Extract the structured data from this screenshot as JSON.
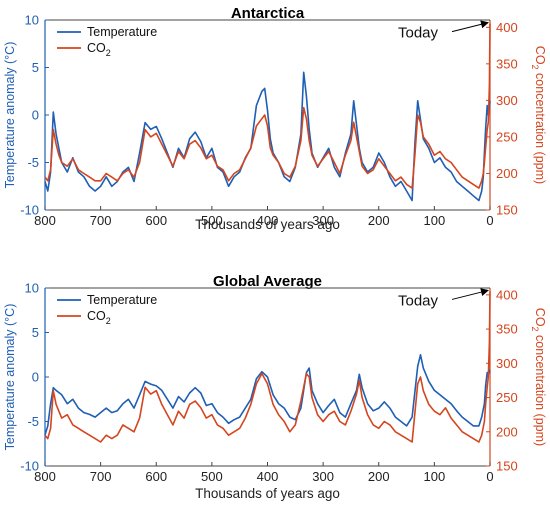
{
  "colors": {
    "temperature": "#1f5fb4",
    "co2": "#d4461f",
    "axis_text": "#000000"
  },
  "chart_data": [
    {
      "type": "line",
      "title": "Antarctica",
      "xlabel": "Thousands of years ago",
      "ylabel_left": "Temperature anomaly (°C)",
      "ylabel_right_main": "CO",
      "ylabel_right_sub": "2",
      "ylabel_right_tail": " concentration (ppm)",
      "xlim": [
        800,
        0
      ],
      "ylim_left": [
        -10,
        10
      ],
      "ylim_right": [
        150,
        410
      ],
      "xticks": [
        "800",
        "700",
        "600",
        "500",
        "400",
        "300",
        "200",
        "100",
        "0"
      ],
      "yticks_left": [
        "-10",
        "-5",
        "0",
        "5",
        "10"
      ],
      "yticks_right": [
        "150",
        "200",
        "250",
        "300",
        "350",
        "400"
      ],
      "grid": false,
      "legend_position": "top-left",
      "legend": {
        "temperature": "Temperature",
        "co2_main": "CO",
        "co2_sub": "2"
      },
      "annotation": {
        "text": "Today",
        "x": 0,
        "y_ppm": 405
      },
      "series": [
        {
          "name": "Temperature",
          "axis": "left",
          "x": [
            800,
            795,
            790,
            785,
            780,
            775,
            770,
            760,
            750,
            740,
            730,
            720,
            710,
            700,
            690,
            680,
            670,
            660,
            650,
            640,
            630,
            620,
            610,
            600,
            590,
            580,
            570,
            560,
            550,
            540,
            530,
            520,
            510,
            500,
            490,
            480,
            470,
            460,
            450,
            440,
            430,
            420,
            410,
            405,
            400,
            395,
            390,
            380,
            370,
            360,
            350,
            340,
            335,
            330,
            325,
            320,
            310,
            300,
            290,
            280,
            270,
            260,
            250,
            245,
            240,
            235,
            230,
            220,
            210,
            200,
            190,
            180,
            170,
            160,
            150,
            140,
            135,
            130,
            125,
            120,
            110,
            100,
            90,
            80,
            70,
            60,
            50,
            40,
            30,
            20,
            15,
            12,
            10,
            8,
            5,
            3,
            1,
            0
          ],
          "y": [
            -7,
            -8,
            -6,
            0.3,
            -2,
            -3.5,
            -5,
            -6,
            -4.5,
            -6,
            -6.5,
            -7.5,
            -8,
            -7.5,
            -6.5,
            -7.5,
            -7,
            -6,
            -5.5,
            -7,
            -4,
            -0.8,
            -1.5,
            -1.2,
            -2.5,
            -4,
            -5.5,
            -3.5,
            -4.5,
            -2.5,
            -1.8,
            -2.8,
            -4.5,
            -3.5,
            -5.5,
            -6,
            -7.5,
            -6.5,
            -6,
            -4.5,
            -3.5,
            1,
            2.5,
            2.8,
            0.5,
            -2.5,
            -4,
            -5,
            -6.5,
            -7,
            -5.5,
            -2,
            4.5,
            2,
            -1.5,
            -4,
            -5.5,
            -4.5,
            -3.5,
            -5.5,
            -6.5,
            -4,
            -2,
            1.5,
            -1,
            -3.5,
            -5,
            -6,
            -5.5,
            -4,
            -5,
            -6.5,
            -7.5,
            -7,
            -8,
            -9,
            -3,
            1.5,
            -0.5,
            -2.5,
            -3.5,
            -5,
            -4.5,
            -5.5,
            -6,
            -7,
            -7.5,
            -8,
            -8.5,
            -9,
            -8,
            -6.5,
            -4,
            -1.5,
            1,
            0,
            0.8,
            1.5
          ]
        },
        {
          "name": "CO₂",
          "axis": "right",
          "x": [
            800,
            795,
            790,
            785,
            780,
            775,
            770,
            760,
            750,
            740,
            730,
            720,
            710,
            700,
            690,
            680,
            670,
            660,
            650,
            640,
            630,
            620,
            610,
            600,
            590,
            580,
            570,
            560,
            550,
            540,
            530,
            520,
            510,
            500,
            490,
            480,
            470,
            460,
            450,
            440,
            430,
            420,
            410,
            405,
            400,
            395,
            390,
            380,
            370,
            360,
            350,
            340,
            335,
            330,
            325,
            320,
            310,
            300,
            290,
            280,
            270,
            260,
            250,
            245,
            240,
            235,
            230,
            220,
            210,
            200,
            190,
            180,
            170,
            160,
            150,
            140,
            135,
            130,
            125,
            120,
            110,
            100,
            90,
            80,
            70,
            60,
            50,
            40,
            30,
            20,
            15,
            12,
            10,
            8,
            5,
            3,
            1,
            0
          ],
          "y": [
            195,
            190,
            205,
            260,
            240,
            225,
            215,
            210,
            220,
            205,
            200,
            195,
            190,
            190,
            200,
            195,
            190,
            200,
            205,
            195,
            215,
            260,
            250,
            255,
            240,
            225,
            210,
            230,
            220,
            240,
            245,
            235,
            220,
            225,
            210,
            205,
            190,
            200,
            205,
            220,
            235,
            265,
            275,
            280,
            265,
            235,
            225,
            215,
            200,
            195,
            210,
            245,
            290,
            275,
            245,
            225,
            210,
            220,
            230,
            215,
            200,
            225,
            245,
            270,
            250,
            230,
            210,
            200,
            205,
            220,
            210,
            200,
            190,
            195,
            185,
            180,
            225,
            280,
            270,
            250,
            240,
            225,
            230,
            220,
            215,
            205,
            195,
            190,
            185,
            180,
            190,
            200,
            215,
            235,
            260,
            270,
            320,
            405
          ]
        }
      ]
    },
    {
      "type": "line",
      "title": "Global Average",
      "xlabel": "Thousands of years ago",
      "ylabel_left": "Temperature anomaly (°C)",
      "ylabel_right_main": "CO",
      "ylabel_right_sub": "2",
      "ylabel_right_tail": " concentration (ppm)",
      "xlim": [
        800,
        0
      ],
      "ylim_left": [
        -10,
        10
      ],
      "ylim_right": [
        150,
        410
      ],
      "xticks": [
        "800",
        "700",
        "600",
        "500",
        "400",
        "300",
        "200",
        "100",
        "0"
      ],
      "yticks_left": [
        "-10",
        "-5",
        "0",
        "5",
        "10"
      ],
      "yticks_right": [
        "150",
        "200",
        "250",
        "300",
        "350",
        "400"
      ],
      "grid": false,
      "legend_position": "top-left",
      "legend": {
        "temperature": "Temperature",
        "co2_main": "CO",
        "co2_sub": "2"
      },
      "annotation": {
        "text": "Today",
        "x": 0,
        "y_ppm": 405
      },
      "series": [
        {
          "name": "Temperature",
          "axis": "left",
          "x": [
            800,
            795,
            790,
            785,
            780,
            770,
            760,
            750,
            740,
            730,
            720,
            710,
            700,
            690,
            680,
            670,
            660,
            650,
            640,
            630,
            620,
            610,
            600,
            590,
            580,
            570,
            560,
            550,
            540,
            530,
            520,
            510,
            500,
            490,
            480,
            470,
            460,
            450,
            440,
            430,
            420,
            410,
            400,
            390,
            380,
            370,
            360,
            350,
            340,
            330,
            325,
            320,
            310,
            300,
            290,
            280,
            270,
            260,
            250,
            240,
            235,
            230,
            220,
            210,
            200,
            190,
            180,
            170,
            160,
            150,
            140,
            130,
            125,
            120,
            110,
            100,
            90,
            80,
            70,
            60,
            50,
            40,
            30,
            20,
            15,
            10,
            8,
            5,
            3,
            1,
            0
          ],
          "y": [
            -6.5,
            -5.5,
            -3,
            -1.2,
            -1.5,
            -2,
            -3,
            -2.5,
            -3.5,
            -4,
            -4.2,
            -4.5,
            -4,
            -3.5,
            -4,
            -3.8,
            -3,
            -2.5,
            -3.5,
            -2,
            -0.5,
            -0.8,
            -1,
            -1.5,
            -2.5,
            -3.5,
            -2.2,
            -2.8,
            -1.8,
            -1.2,
            -1.8,
            -3.2,
            -3,
            -4,
            -4.5,
            -5.2,
            -4.8,
            -4.5,
            -3.5,
            -2.5,
            -0.2,
            0.6,
            0,
            -2,
            -3,
            -3.5,
            -4.5,
            -4.8,
            -3.5,
            0.5,
            1,
            -1.5,
            -3,
            -4,
            -3.2,
            -2.5,
            -4,
            -4.5,
            -3,
            -1.5,
            0.3,
            -1.2,
            -3,
            -3.8,
            -3.5,
            -2.8,
            -3.5,
            -4.5,
            -5,
            -5.5,
            -4.5,
            1.2,
            2.5,
            1,
            -0.5,
            -1.5,
            -2,
            -2.5,
            -3,
            -3.8,
            -4.5,
            -5,
            -5.5,
            -5.5,
            -4.5,
            -3,
            -1,
            0.5,
            0.3,
            0.8,
            0.5
          ]
        },
        {
          "name": "CO₂",
          "axis": "right",
          "x": [
            800,
            795,
            790,
            785,
            780,
            770,
            760,
            750,
            740,
            730,
            720,
            710,
            700,
            690,
            680,
            670,
            660,
            650,
            640,
            630,
            620,
            610,
            600,
            590,
            580,
            570,
            560,
            550,
            540,
            530,
            520,
            510,
            500,
            490,
            480,
            470,
            460,
            450,
            440,
            430,
            420,
            410,
            400,
            390,
            380,
            370,
            360,
            350,
            340,
            330,
            325,
            320,
            310,
            300,
            290,
            280,
            270,
            260,
            250,
            240,
            235,
            230,
            220,
            210,
            200,
            190,
            180,
            170,
            160,
            150,
            140,
            130,
            125,
            120,
            110,
            100,
            90,
            80,
            70,
            60,
            50,
            40,
            30,
            20,
            15,
            10,
            8,
            5,
            3,
            1,
            0
          ],
          "y": [
            195,
            190,
            205,
            260,
            240,
            220,
            225,
            210,
            205,
            200,
            195,
            190,
            185,
            195,
            190,
            195,
            210,
            205,
            200,
            220,
            265,
            255,
            260,
            240,
            225,
            210,
            230,
            220,
            240,
            245,
            235,
            220,
            225,
            210,
            205,
            195,
            200,
            205,
            220,
            240,
            270,
            285,
            270,
            240,
            225,
            215,
            200,
            210,
            245,
            285,
            280,
            250,
            225,
            215,
            225,
            230,
            215,
            210,
            230,
            255,
            275,
            250,
            225,
            210,
            205,
            215,
            210,
            200,
            195,
            190,
            185,
            270,
            280,
            260,
            240,
            230,
            225,
            235,
            220,
            210,
            200,
            195,
            190,
            185,
            195,
            215,
            240,
            265,
            280,
            330,
            405
          ]
        }
      ]
    }
  ]
}
